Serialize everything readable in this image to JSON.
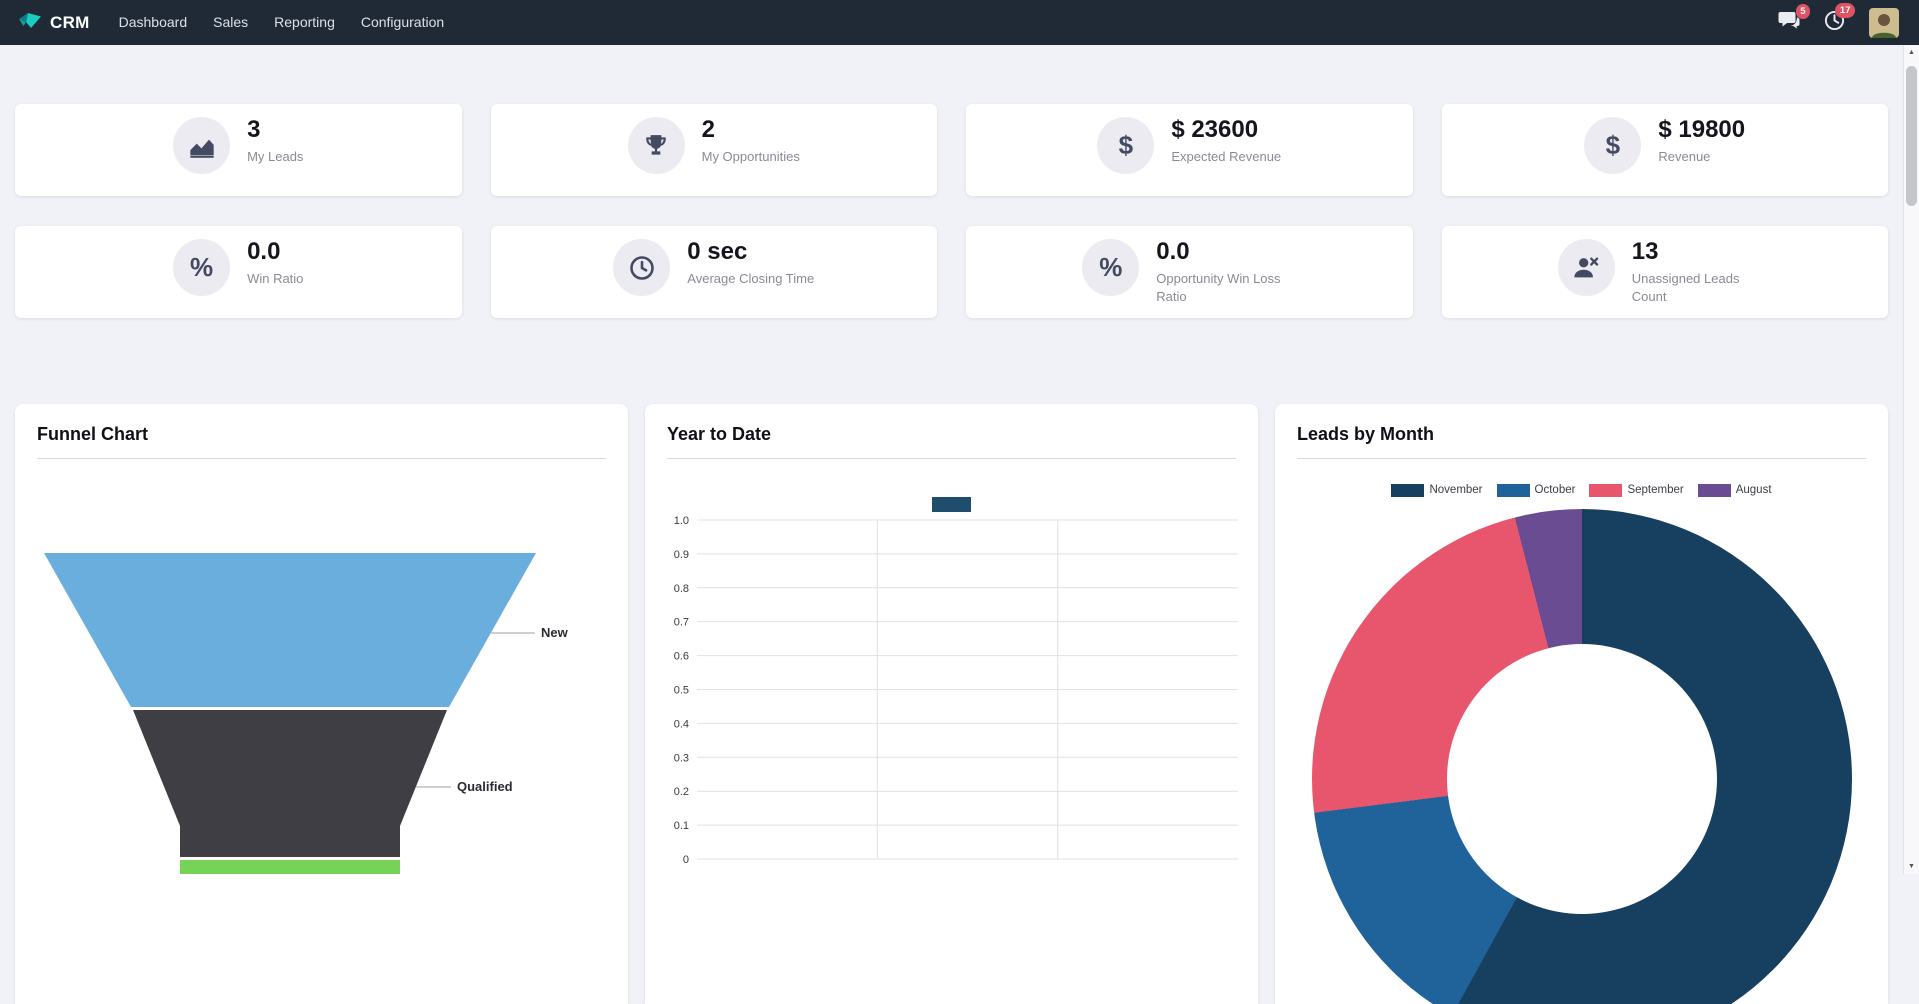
{
  "colors": {
    "topbar-bg": "#202a37",
    "page-bg": "#f1f1f8",
    "badge": "#de5263",
    "icon-circle": "#ebebf1",
    "icon": "#454a63",
    "value-text": "#15151e",
    "label-text": "#8a8a94"
  },
  "topbar": {
    "app_name": "CRM",
    "menu": [
      {
        "label": "Dashboard"
      },
      {
        "label": "Sales"
      },
      {
        "label": "Reporting"
      },
      {
        "label": "Configuration"
      }
    ],
    "messages_badge": "5",
    "activities_badge": "17"
  },
  "icons": {
    "scroll_up": "▲",
    "scroll_down": "▼"
  },
  "kpis": [
    {
      "icon": "area-chart-icon",
      "value": "3",
      "label": "My Leads"
    },
    {
      "icon": "trophy-icon",
      "value": "2",
      "label": "My Opportunities"
    },
    {
      "icon": "dollar-icon",
      "glyph": "$",
      "value": "$ 23600",
      "label": "Expected Revenue"
    },
    {
      "icon": "dollar-icon",
      "glyph": "$",
      "value": "$ 19800",
      "label": "Revenue"
    },
    {
      "icon": "percent-icon",
      "glyph": "%",
      "value": "0.0",
      "label": "Win Ratio"
    },
    {
      "icon": "clock-icon",
      "value": "0 sec",
      "label": "Average Closing Time"
    },
    {
      "icon": "percent-icon",
      "glyph": "%",
      "value": "0.0",
      "label": "Opportunity Win Loss Ratio"
    },
    {
      "icon": "user-x-icon",
      "value": "13",
      "label": "Unassigned Leads Count"
    }
  ],
  "chart_data": [
    {
      "type": "funnel",
      "title": "Funnel Chart",
      "stages": [
        {
          "label": "New",
          "color": "#6aaede"
        },
        {
          "label": "Qualified",
          "color": "#3e3e44"
        },
        {
          "label": "",
          "color": "#76d357"
        }
      ]
    },
    {
      "type": "bar",
      "title": "Year to Date",
      "ylim": [
        0,
        1.0
      ],
      "yticks": [
        "1.0",
        "0.9",
        "0.8",
        "0.7",
        "0.6",
        "0.5",
        "0.4",
        "0.3",
        "0.2",
        "0.1",
        "0"
      ],
      "grid": true,
      "legend_position": "top",
      "series": [
        {
          "name": "",
          "color": "#1f4e6d",
          "values": []
        }
      ]
    },
    {
      "type": "pie",
      "title": "Leads by Month",
      "donut": true,
      "legend_position": "top",
      "slices": [
        {
          "label": "November",
          "value": 58,
          "color": "#173f5f"
        },
        {
          "label": "October",
          "value": 15,
          "color": "#20639b"
        },
        {
          "label": "September",
          "value": 23,
          "color": "#e8566d"
        },
        {
          "label": "August",
          "value": 4,
          "color": "#6a4c93"
        }
      ]
    }
  ]
}
